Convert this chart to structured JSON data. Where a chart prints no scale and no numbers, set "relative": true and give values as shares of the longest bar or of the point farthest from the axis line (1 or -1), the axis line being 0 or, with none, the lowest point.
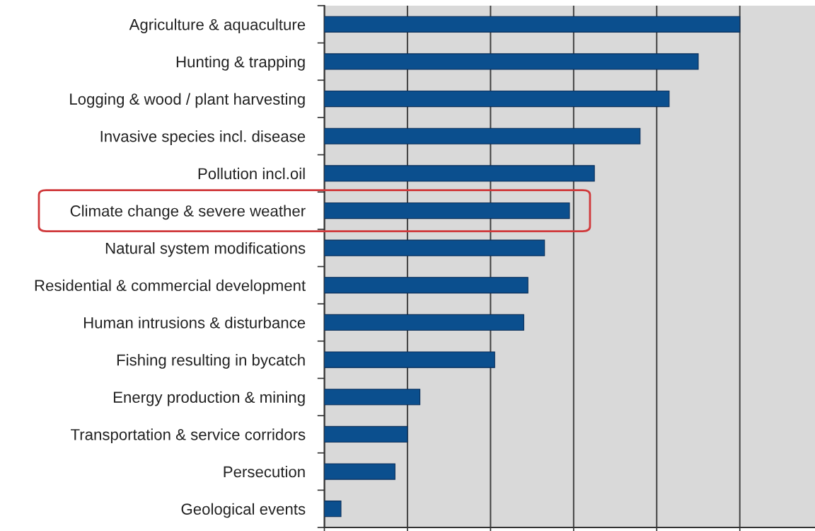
{
  "chart_data": {
    "type": "bar",
    "orientation": "horizontal",
    "relative": true,
    "categories": [
      "Agriculture & aquaculture",
      "Hunting & trapping",
      "Logging & wood / plant harvesting",
      "Invasive species incl. disease",
      "Pollution incl.oil",
      "Climate change & severe weather",
      "Natural system modifications",
      "Residential & commercial development",
      "Human intrusions & disturbance",
      "Fishing resulting in bycatch",
      "Energy production & mining",
      "Transportation & service corridors",
      "Persecution",
      "Geological events"
    ],
    "values": [
      1,
      0.9,
      0.83,
      0.76,
      0.65,
      0.59,
      0.53,
      0.49,
      0.48,
      0.41,
      0.23,
      0.2,
      0.17,
      0.04
    ],
    "color": "#0b4f8e",
    "grid": "x",
    "tick_labels": "y"
  }
}
